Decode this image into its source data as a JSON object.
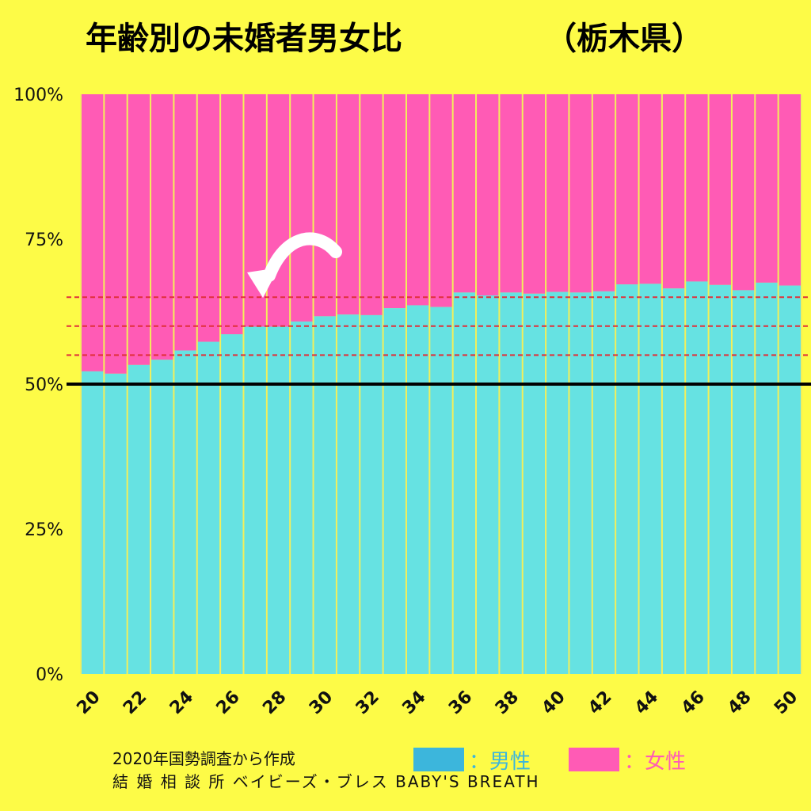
{
  "title": "年齢別の未婚者男女比",
  "region": "（栃木県）",
  "footer": {
    "source": "2020年国勢調査から作成",
    "brand": "結 婚 相 談 所 ベイビーズ・ブレス BABY'S BREATH"
  },
  "legend": {
    "male_label": "：男性",
    "female_label": "：女性"
  },
  "colors": {
    "background": "#fdfb47",
    "male": "#66e2e2",
    "female": "#ff5bb5",
    "legend_male": "#3cb6dc",
    "legend_female": "#ff5bb5",
    "bar_separator": "#f3ef5a",
    "ref_line": "#e0303a",
    "baseline_50": "#000000"
  },
  "chart_data": {
    "type": "bar",
    "stacked": true,
    "normalized": true,
    "categories": [
      20,
      21,
      22,
      23,
      24,
      25,
      26,
      27,
      28,
      29,
      30,
      31,
      32,
      33,
      34,
      35,
      36,
      37,
      38,
      39,
      40,
      41,
      42,
      43,
      44,
      45,
      46,
      47,
      48,
      49,
      50
    ],
    "x_tick_labels": [
      "20",
      "22",
      "24",
      "26",
      "28",
      "30",
      "32",
      "34",
      "36",
      "38",
      "40",
      "42",
      "44",
      "46",
      "48",
      "50"
    ],
    "series": [
      {
        "name": "男性",
        "values": [
          52.2,
          51.8,
          53.3,
          54.2,
          55.8,
          57.3,
          58.6,
          59.9,
          59.9,
          60.8,
          61.7,
          62.0,
          61.9,
          63.1,
          63.6,
          63.3,
          65.8,
          65.3,
          65.8,
          65.6,
          65.9,
          65.8,
          66.0,
          67.2,
          67.3,
          66.5,
          67.7,
          67.1,
          66.2,
          67.5,
          67.0
        ]
      },
      {
        "name": "女性",
        "values": [
          47.8,
          48.2,
          46.7,
          45.8,
          44.2,
          42.7,
          41.4,
          40.1,
          40.1,
          39.2,
          38.3,
          38.0,
          38.1,
          36.9,
          36.4,
          36.7,
          34.2,
          34.7,
          34.2,
          34.4,
          34.1,
          34.2,
          34.0,
          32.8,
          32.7,
          33.5,
          32.3,
          32.9,
          33.8,
          32.5,
          33.0
        ]
      }
    ],
    "y_tick_labels": [
      "0%",
      "25%",
      "50%",
      "75%",
      "100%"
    ],
    "ylim": [
      0,
      100
    ],
    "reference_lines": [
      55,
      60,
      65
    ],
    "highlight_line": 50,
    "annotation": {
      "type": "arrow",
      "points_to_age": 27
    },
    "grid": false
  }
}
